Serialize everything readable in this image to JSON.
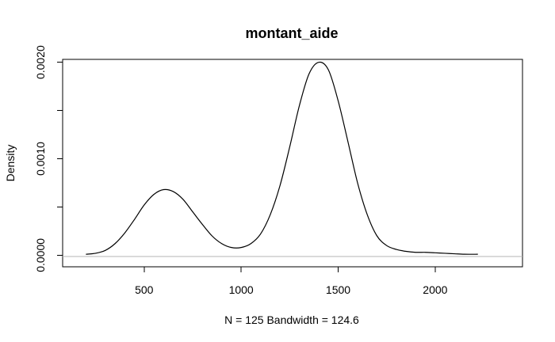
{
  "chart_data": {
    "type": "line",
    "title": "montant_aide",
    "xlabel": "N = 125   Bandwidth = 124.6",
    "ylabel": "Density",
    "xlim": [
      80,
      2450
    ],
    "ylim": [
      -0.00012,
      0.00203
    ],
    "x_ticks": [
      500,
      1000,
      1500,
      2000
    ],
    "x_tick_labels": [
      "500",
      "1000",
      "1500",
      "2000"
    ],
    "y_ticks": [
      0.0,
      0.0005,
      0.001,
      0.0015,
      0.002
    ],
    "y_tick_labels": [
      "0.0000",
      "",
      "0.0010",
      "",
      "0.0020"
    ],
    "grid": false,
    "zero_line": true,
    "series": [
      {
        "x": [
          200,
          250,
          300,
          350,
          400,
          450,
          500,
          550,
          600,
          650,
          700,
          750,
          800,
          850,
          900,
          950,
          1000,
          1050,
          1100,
          1150,
          1200,
          1250,
          1300,
          1350,
          1400,
          1450,
          1500,
          1550,
          1600,
          1650,
          1700,
          1750,
          1800,
          1850,
          1900,
          1950,
          2000,
          2050,
          2100,
          2150,
          2220
        ],
        "y": [
          1e-05,
          2e-05,
          5e-05,
          0.00012,
          0.00023,
          0.00037,
          0.00052,
          0.00063,
          0.00068,
          0.00066,
          0.00058,
          0.00045,
          0.00032,
          0.0002,
          0.00012,
          8e-05,
          8e-05,
          0.00012,
          0.00022,
          0.00042,
          0.00072,
          0.00112,
          0.00155,
          0.00188,
          0.002,
          0.00192,
          0.0016,
          0.00118,
          0.00075,
          0.00042,
          0.0002,
          0.0001,
          6e-05,
          4e-05,
          3e-05,
          3e-05,
          2.5e-05,
          2e-05,
          1.5e-05,
          1e-05,
          1e-05
        ]
      }
    ]
  }
}
